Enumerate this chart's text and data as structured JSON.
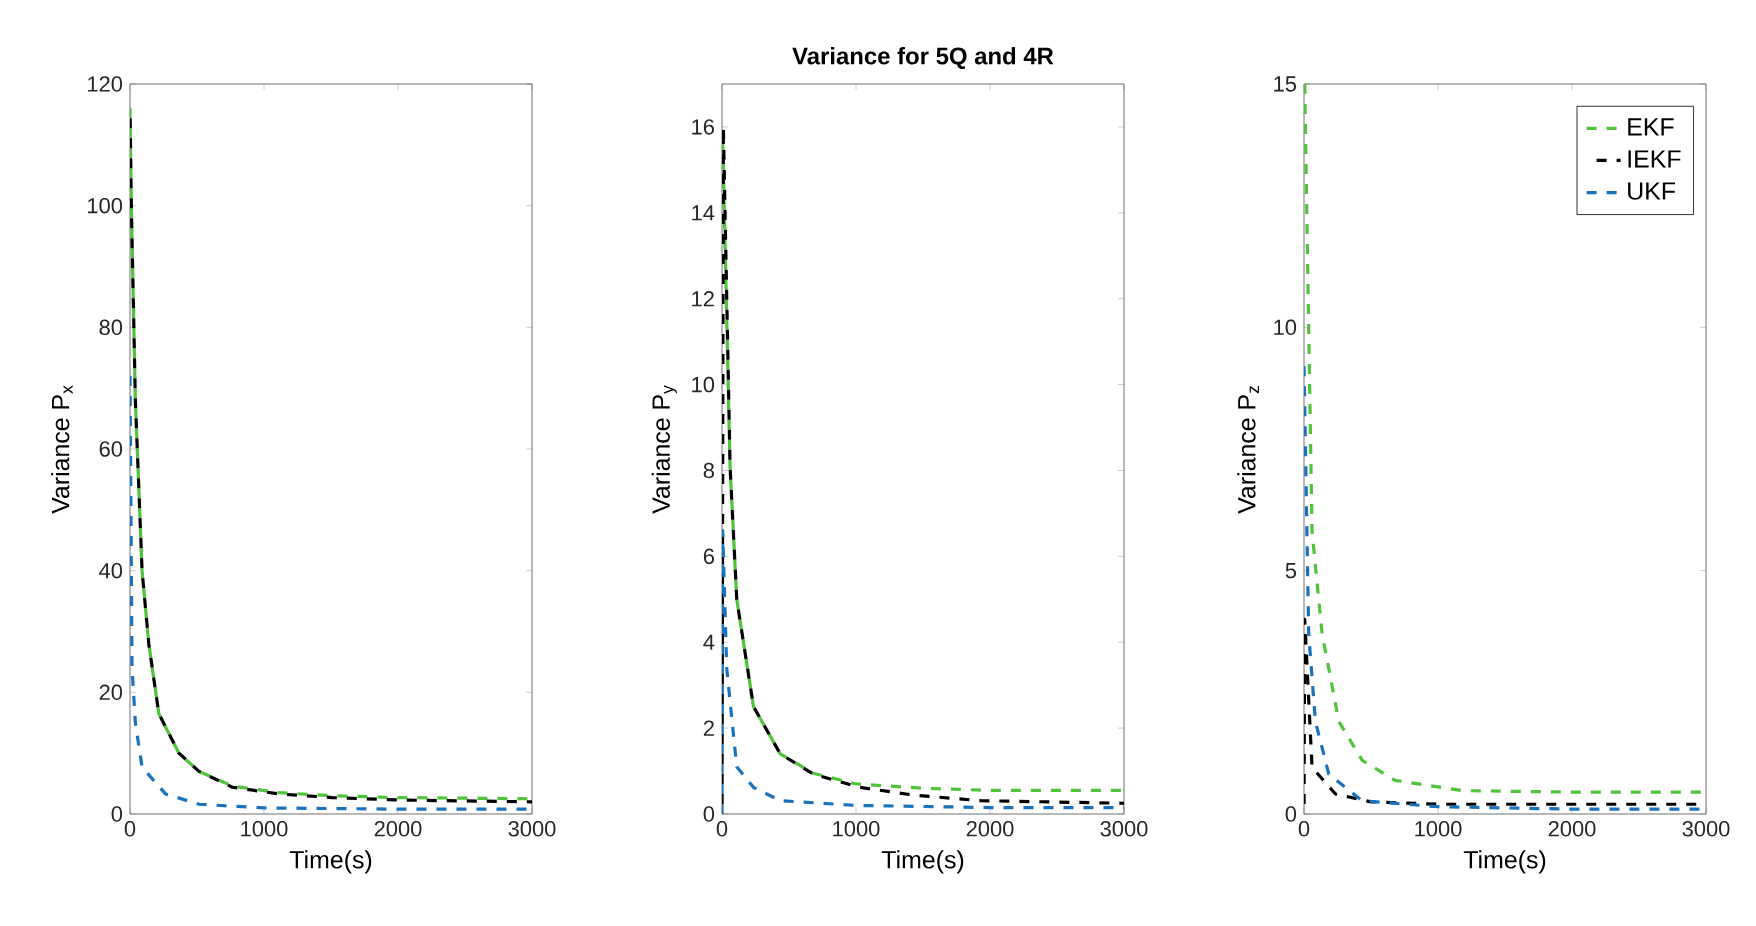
{
  "chart_data": [
    {
      "type": "line",
      "xlabel": "Time(s)",
      "ylabel": "Variance P$_{x}$",
      "xlim": [
        0,
        3000
      ],
      "ylim": [
        0,
        120
      ],
      "xticks": [
        0,
        1000,
        2000,
        3000
      ],
      "yticks": [
        0,
        20,
        40,
        60,
        80,
        100,
        120
      ],
      "grid": false,
      "line_style": "dashed",
      "marker": "none",
      "series": [
        {
          "color": "#4fc43a",
          "x": [
            0,
            10,
            40,
            90,
            140,
            215,
            365,
            515,
            765,
            1110,
            1510,
            2000,
            3000
          ],
          "values": [
            116,
            100,
            68,
            40,
            28,
            16.5,
            10,
            7,
            4.6,
            3.5,
            3,
            2.7,
            2.5
          ]
        },
        {
          "color": "#000000",
          "x": [
            0,
            10,
            40,
            90,
            140,
            215,
            365,
            515,
            765,
            1110,
            1510,
            2000,
            3000
          ],
          "values": [
            116,
            100,
            68,
            40,
            28,
            16.5,
            10,
            7,
            4.4,
            3.3,
            2.7,
            2.3,
            2
          ]
        },
        {
          "color": "#1a72bd",
          "x": [
            0,
            15,
            40,
            90,
            265,
            515,
            1000,
            2000,
            3000
          ],
          "values": [
            72,
            24,
            15,
            7.7,
            3.3,
            1.6,
            1,
            0.8,
            0.8
          ]
        }
      ]
    },
    {
      "type": "line",
      "title": "Variance for 5Q and 4R",
      "xlabel": "Time(s)",
      "ylabel": "Variance P$_{y}$",
      "xlim": [
        0,
        3000
      ],
      "ylim": [
        0,
        17
      ],
      "xticks": [
        0,
        1000,
        2000,
        3000
      ],
      "yticks": [
        0,
        2,
        4,
        6,
        8,
        10,
        12,
        14,
        16
      ],
      "grid": false,
      "line_style": "dashed",
      "marker": "none",
      "series": [
        {
          "color": "#4fc43a",
          "x": [
            5,
            60,
            110,
            235,
            435,
            680,
            1000,
            1500,
            2000,
            3000
          ],
          "values": [
            15.7,
            8.1,
            5,
            2.5,
            1.4,
            0.95,
            0.7,
            0.6,
            0.55,
            0.55
          ]
        },
        {
          "color": "#000000",
          "x": [
            0,
            10,
            60,
            110,
            235,
            435,
            680,
            1030,
            1430,
            1930,
            3000
          ],
          "values": [
            0,
            16,
            8.1,
            5,
            2.5,
            1.4,
            0.93,
            0.62,
            0.44,
            0.31,
            0.25
          ]
        },
        {
          "color": "#1a72bd",
          "x": [
            0,
            5,
            35,
            110,
            235,
            435,
            1000,
            2000,
            3000
          ],
          "values": [
            0,
            6.6,
            3.4,
            1.1,
            0.62,
            0.31,
            0.2,
            0.15,
            0.15
          ]
        }
      ]
    },
    {
      "type": "line",
      "xlabel": "Time(s)",
      "ylabel": "Variance P$_{z}$",
      "xlim": [
        0,
        3000
      ],
      "ylim": [
        0,
        15
      ],
      "xticks": [
        0,
        1000,
        2000,
        3000
      ],
      "yticks": [
        0,
        5,
        10,
        15
      ],
      "grid": false,
      "line_style": "dashed",
      "marker": "none",
      "legend": "top right",
      "series": [
        {
          "name": "EKF",
          "color": "#4fc43a",
          "x": [
            5,
            60,
            135,
            260,
            435,
            680,
            1180,
            2000,
            3000
          ],
          "values": [
            15,
            5.8,
            3.7,
            1.9,
            1.1,
            0.69,
            0.48,
            0.45,
            0.45
          ]
        },
        {
          "name": "IEKF",
          "color": "#000000",
          "x": [
            0,
            5,
            60,
            235,
            500,
            1000,
            2000,
            3000
          ],
          "values": [
            0,
            4,
            0.96,
            0.41,
            0.25,
            0.2,
            0.2,
            0.2
          ]
        },
        {
          "name": "UKF",
          "color": "#1a72bd",
          "x": [
            0,
            35,
            85,
            185,
            435,
            1000,
            2000,
            3000
          ],
          "values": [
            9.2,
            3.7,
            1.9,
            0.82,
            0.27,
            0.15,
            0.1,
            0.1
          ]
        }
      ]
    }
  ]
}
